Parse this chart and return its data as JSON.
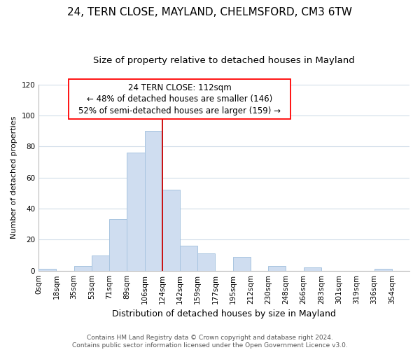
{
  "title": "24, TERN CLOSE, MAYLAND, CHELMSFORD, CM3 6TW",
  "subtitle": "Size of property relative to detached houses in Mayland",
  "xlabel": "Distribution of detached houses by size in Mayland",
  "ylabel": "Number of detached properties",
  "bar_color": "#cfddf0",
  "bar_edge_color": "#a8c4e0",
  "background_color": "#ffffff",
  "grid_color": "#d0dce8",
  "bin_labels": [
    "0sqm",
    "18sqm",
    "35sqm",
    "53sqm",
    "71sqm",
    "89sqm",
    "106sqm",
    "124sqm",
    "142sqm",
    "159sqm",
    "177sqm",
    "195sqm",
    "212sqm",
    "230sqm",
    "248sqm",
    "266sqm",
    "283sqm",
    "301sqm",
    "319sqm",
    "336sqm",
    "354sqm"
  ],
  "bar_values": [
    1,
    0,
    3,
    10,
    33,
    76,
    90,
    52,
    16,
    11,
    0,
    9,
    0,
    3,
    0,
    2,
    0,
    0,
    0,
    1,
    0
  ],
  "ylim": [
    0,
    120
  ],
  "yticks": [
    0,
    20,
    40,
    60,
    80,
    100,
    120
  ],
  "marker_label": "24 TERN CLOSE: 112sqm",
  "annotation_line1": "← 48% of detached houses are smaller (146)",
  "annotation_line2": "52% of semi-detached houses are larger (159) →",
  "vline_bin_index": 7,
  "vline_color": "#cc0000",
  "footer_line1": "Contains HM Land Registry data © Crown copyright and database right 2024.",
  "footer_line2": "Contains public sector information licensed under the Open Government Licence v3.0.",
  "title_fontsize": 11,
  "subtitle_fontsize": 9.5,
  "xlabel_fontsize": 9,
  "ylabel_fontsize": 8,
  "tick_fontsize": 7.5,
  "footer_fontsize": 6.5,
  "annotation_fontsize": 8.5
}
